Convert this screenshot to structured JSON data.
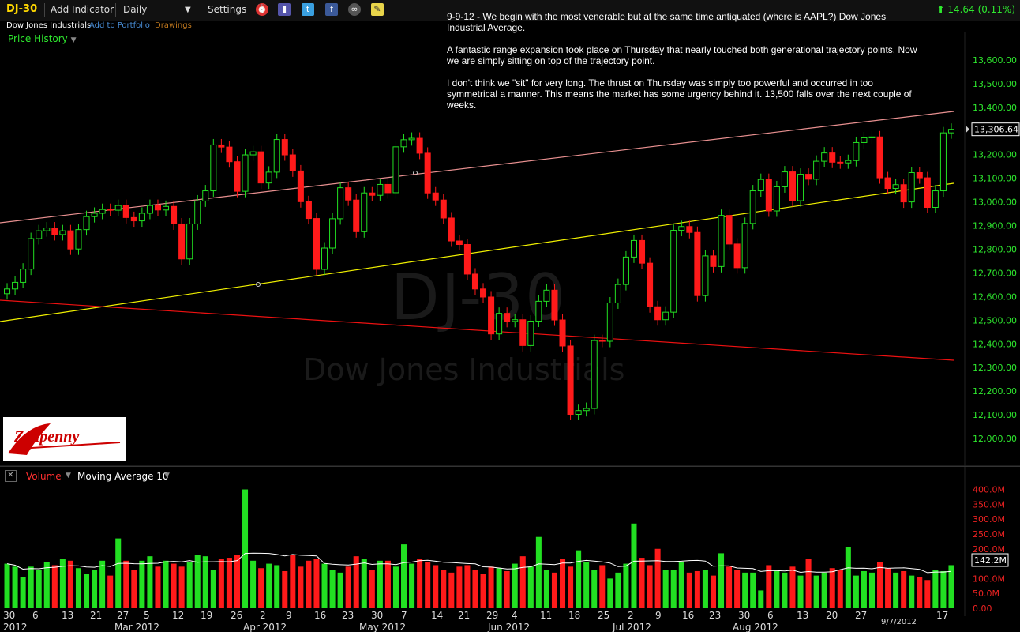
{
  "toolbar": {
    "symbol": "DJ-30",
    "add_indicator": "Add Indicator",
    "interval": "Daily",
    "settings": "Settings",
    "change": "14.64 (0.11%)"
  },
  "subbar": {
    "name": "Dow Jones Industrials",
    "add_to_portfolio": "Add to Portfolio",
    "drawings": "Drawings"
  },
  "panel_label": "Price History",
  "note": [
    "9-9-12 - We  begin with the most venerable but at the same time antiquated (where is AAPL?) Dow Jones Industrial Average.",
    "A fantastic range expansion took place on Thursday that nearly touched both generational trajectory points. Now we are simply sitting on top of the trajectory point.",
    "I don't think we \"sit\" for very long. The thrust on Thursday was simply too powerful and occurred in too symmetrical a manner. This means the market has some urgency behind it. 13,500 falls over the next couple of weeks."
  ],
  "watermark": {
    "symbol": "DJ-30",
    "name": "Dow Jones Industrials"
  },
  "logo": "Zenpenny",
  "volume_bar": {
    "volume": "Volume",
    "ma": "Moving Average 10"
  },
  "colors": {
    "up": "#22e022",
    "down": "#ff1a1a",
    "axis_text": "#2ee82e",
    "upper_line": "#e89090",
    "mid_line": "#f0f000",
    "lower_line": "#ee1111"
  },
  "chart_data": [
    {
      "type": "candlestick",
      "title": "",
      "ylim": [
        11900,
        13700
      ],
      "y_ticks": [
        "13,600.00",
        "13,500.00",
        "13,400.00",
        "13,300.00",
        "13,200.00",
        "13,100.00",
        "13,000.00",
        "12,900.00",
        "12,800.00",
        "12,700.00",
        "12,600.00",
        "12,500.00",
        "12,400.00",
        "12,300.00",
        "12,200.00",
        "12,100.00",
        "12,000.00"
      ],
      "last_price_label": "13,306.64",
      "x_ticks": [
        "30",
        "6",
        "13",
        "21",
        "27",
        "5",
        "12",
        "19",
        "26",
        "2",
        "9",
        "16",
        "23",
        "30",
        "7",
        "14",
        "21",
        "29",
        "4",
        "11",
        "18",
        "25",
        "2",
        "9",
        "16",
        "23",
        "30",
        "6",
        "13",
        "20",
        "27",
        "17"
      ],
      "month_labels": [
        "2012",
        "Mar 2012",
        "Apr 2012",
        "May 2012",
        "Jun 2012",
        "Jul 2012",
        "Aug 2012"
      ],
      "date_marker": "9/7/2012",
      "closes": [
        12632,
        12660,
        12716,
        12845,
        12878,
        12890,
        12862,
        12878,
        12801,
        12883,
        12938,
        12952,
        12968,
        12965,
        12985,
        12934,
        12920,
        12952,
        12985,
        12966,
        12981,
        12907,
        12759,
        12907,
        13004,
        13047,
        13241,
        13232,
        13170,
        13045,
        13199,
        13212,
        13080,
        13126,
        13264,
        13199,
        13131,
        13001,
        12930,
        12715,
        12805,
        12929,
        13060,
        13008,
        12874,
        13038,
        13028,
        13074,
        13039,
        13233,
        13263,
        13269,
        13206,
        13038,
        13008,
        12932,
        12835,
        12820,
        12695,
        12632,
        12598,
        12442,
        12529,
        12495,
        12502,
        12393,
        12496,
        12580,
        12627,
        12501,
        12391,
        12102,
        12118,
        12127,
        12414,
        12411,
        12573,
        12651,
        12767,
        12837,
        12741,
        12557,
        12502,
        12534,
        12880,
        12896,
        12871,
        12604,
        12772,
        12727,
        12943,
        12822,
        12722,
        12909,
        13047,
        13095,
        12962,
        13064,
        13127,
        13005,
        13117,
        13096,
        13172,
        13207,
        13168,
        13165,
        13175,
        13251,
        13271,
        13275,
        13102,
        13057,
        13073,
        13000,
        13124,
        13102,
        12977,
        13047,
        13292,
        13307
      ]
    },
    {
      "type": "bar",
      "title": "Volume",
      "ylim": [
        0,
        420
      ],
      "y_ticks": [
        "400.0M",
        "350.0M",
        "300.0M",
        "250.0M",
        "200.0M",
        "150.0M",
        "100.0M",
        "50.0M",
        "0.00"
      ],
      "last_label": "142.2M",
      "values": [
        150,
        140,
        105,
        140,
        130,
        155,
        145,
        165,
        160,
        135,
        115,
        130,
        160,
        110,
        235,
        160,
        130,
        160,
        175,
        140,
        160,
        150,
        140,
        155,
        180,
        175,
        130,
        165,
        170,
        180,
        400,
        160,
        135,
        150,
        145,
        125,
        180,
        140,
        160,
        165,
        150,
        130,
        120,
        140,
        175,
        165,
        130,
        160,
        160,
        140,
        215,
        150,
        165,
        155,
        145,
        130,
        120,
        140,
        145,
        130,
        115,
        140,
        135,
        125,
        150,
        175,
        140,
        240,
        130,
        120,
        165,
        140,
        195,
        155,
        130,
        145,
        100,
        120,
        150,
        285,
        170,
        145,
        200,
        130,
        130,
        155,
        120,
        125,
        130,
        110,
        185,
        140,
        130,
        120,
        120,
        60,
        145,
        125,
        120,
        140,
        110,
        165,
        110,
        120,
        135,
        130,
        205,
        110,
        125,
        120,
        155,
        135,
        120,
        125,
        110,
        105,
        95,
        130,
        125,
        145
      ]
    }
  ]
}
